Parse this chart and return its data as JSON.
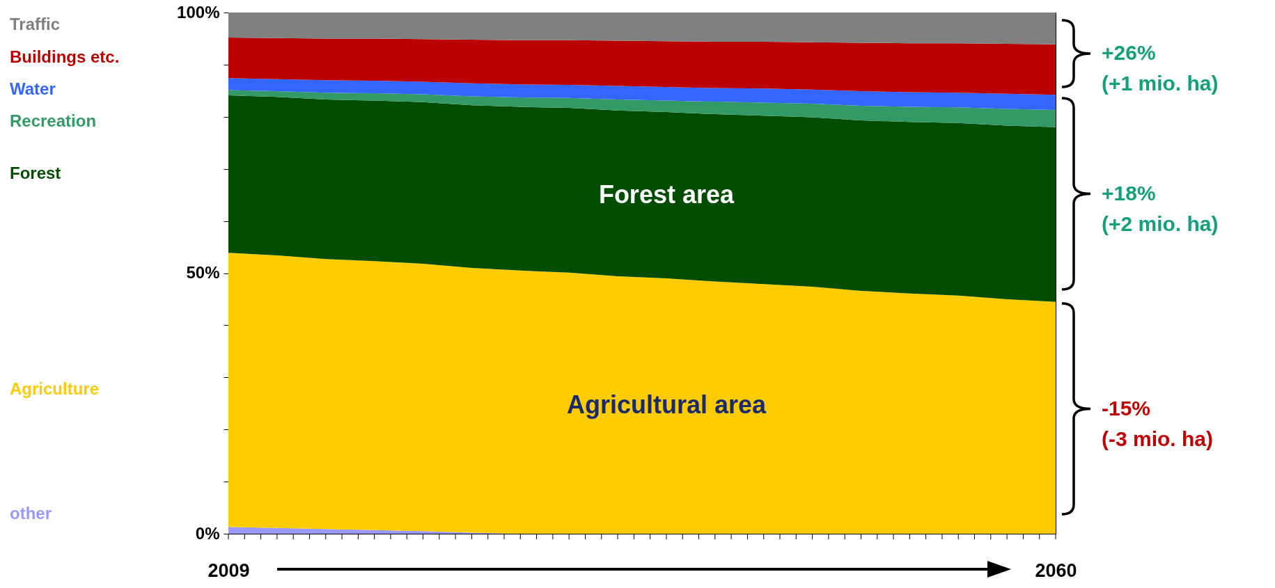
{
  "chart_data": {
    "type": "area",
    "stacked": true,
    "legend": "left",
    "x": [
      2009,
      2012,
      2015,
      2018,
      2021,
      2024,
      2027,
      2030,
      2033,
      2036,
      2039,
      2042,
      2045,
      2048,
      2051,
      2054,
      2057,
      2060
    ],
    "xlim": [
      2009,
      2060
    ],
    "xticks": [
      2009,
      {
        "value": 2010,
        "label": null
      },
      {
        "value": 2011,
        "label": null
      },
      {
        "value": 2012,
        "label": null
      },
      {
        "value": 2013,
        "label": null
      },
      {
        "value": 2014,
        "label": null
      },
      {
        "value": 2015,
        "label": null
      },
      {
        "value": 2016,
        "label": null
      },
      {
        "value": 2017,
        "label": null
      },
      {
        "value": 2018,
        "label": null
      },
      {
        "value": 2019,
        "label": null
      },
      {
        "value": 2020,
        "label": null
      },
      {
        "value": 2021,
        "label": null
      },
      {
        "value": 2022,
        "label": null
      },
      {
        "value": 2023,
        "label": null
      },
      {
        "value": 2024,
        "label": null
      },
      {
        "value": 2025,
        "label": null
      },
      {
        "value": 2026,
        "label": null
      },
      {
        "value": 2027,
        "label": null
      },
      {
        "value": 2028,
        "label": null
      },
      {
        "value": 2029,
        "label": null
      },
      {
        "value": 2030,
        "label": null
      },
      {
        "value": 2031,
        "label": null
      },
      {
        "value": 2032,
        "label": null
      },
      {
        "value": 2033,
        "label": null
      },
      {
        "value": 2034,
        "label": null
      },
      {
        "value": 2035,
        "label": null
      },
      {
        "value": 2036,
        "label": null
      },
      {
        "value": 2037,
        "label": null
      },
      {
        "value": 2038,
        "label": null
      },
      {
        "value": 2039,
        "label": null
      },
      {
        "value": 2040,
        "label": null
      },
      {
        "value": 2041,
        "label": null
      },
      {
        "value": 2042,
        "label": null
      },
      {
        "value": 2043,
        "label": null
      },
      {
        "value": 2044,
        "label": null
      },
      {
        "value": 2045,
        "label": null
      },
      {
        "value": 2046,
        "label": null
      },
      {
        "value": 2047,
        "label": null
      },
      {
        "value": 2048,
        "label": null
      },
      {
        "value": 2049,
        "label": null
      },
      {
        "value": 2050,
        "label": null
      },
      {
        "value": 2051,
        "label": null
      },
      {
        "value": 2052,
        "label": null
      },
      {
        "value": 2053,
        "label": null
      },
      {
        "value": 2054,
        "label": null
      },
      {
        "value": 2055,
        "label": null
      },
      {
        "value": 2056,
        "label": null
      },
      {
        "value": 2057,
        "label": null
      },
      {
        "value": 2058,
        "label": null
      },
      {
        "value": 2059,
        "label": null
      },
      2060
    ],
    "ylim": [
      0,
      100
    ],
    "yticks": [
      {
        "value": 0,
        "label": "0%"
      },
      {
        "value": 10,
        "label": null
      },
      {
        "value": 20,
        "label": null
      },
      {
        "value": 30,
        "label": null
      },
      {
        "value": 40,
        "label": null
      },
      {
        "value": 50,
        "label": "50%"
      },
      {
        "value": 60,
        "label": null
      },
      {
        "value": 70,
        "label": null
      },
      {
        "value": 80,
        "label": null
      },
      {
        "value": 90,
        "label": null
      },
      {
        "value": 100,
        "label": "100%"
      }
    ],
    "series": [
      {
        "name": "other",
        "color": "#9999ff",
        "values": [
          1.3,
          1.1,
          0.9,
          0.7,
          0.5,
          0.2,
          0,
          0,
          0,
          0,
          0,
          0,
          0,
          0,
          0,
          0,
          0,
          0
        ]
      },
      {
        "name": "Agriculture",
        "color": "#ffcc00",
        "values": [
          52.6,
          52.3,
          51.8,
          51.6,
          51.3,
          50.8,
          50.5,
          50.1,
          49.4,
          49.0,
          48.4,
          47.9,
          47.4,
          46.6,
          46.1,
          45.7,
          45.0,
          44.5
        ]
      },
      {
        "name": "Forest",
        "color": "#004d00",
        "values": [
          30.2,
          30.4,
          30.6,
          30.8,
          31.0,
          31.2,
          31.4,
          31.6,
          31.8,
          31.9,
          32.1,
          32.3,
          32.5,
          32.7,
          32.9,
          33.1,
          33.3,
          33.5
        ]
      },
      {
        "name": "Recreation",
        "color": "#339966",
        "values": [
          1.0,
          1.1,
          1.3,
          1.4,
          1.5,
          1.7,
          1.8,
          1.9,
          2.1,
          2.2,
          2.4,
          2.5,
          2.6,
          2.8,
          2.9,
          3.0,
          3.2,
          3.3
        ]
      },
      {
        "name": "Water",
        "color": "#3366ff",
        "values": [
          2.3,
          2.3,
          2.4,
          2.4,
          2.4,
          2.5,
          2.5,
          2.5,
          2.6,
          2.6,
          2.6,
          2.7,
          2.7,
          2.8,
          2.8,
          2.8,
          2.9,
          2.9
        ]
      },
      {
        "name": "Buildings etc.",
        "color": "#bb0000",
        "values": [
          7.8,
          7.9,
          8.0,
          8.1,
          8.2,
          8.4,
          8.5,
          8.6,
          8.7,
          8.8,
          8.9,
          9.0,
          9.1,
          9.3,
          9.4,
          9.5,
          9.6,
          9.7
        ]
      },
      {
        "name": "Traffic",
        "color": "#808080",
        "values": [
          4.8,
          4.9,
          5.0,
          5.0,
          5.1,
          5.2,
          5.3,
          5.3,
          5.4,
          5.5,
          5.6,
          5.6,
          5.7,
          5.8,
          5.9,
          5.9,
          6.0,
          6.1
        ]
      }
    ],
    "annotations": [
      "Forest area",
      "Agricultural area",
      "+26%\n(+1 mio. ha)",
      "+18%\n(+2 mio. ha)",
      "-15%\n(-3 mio. ha)"
    ]
  }
}
